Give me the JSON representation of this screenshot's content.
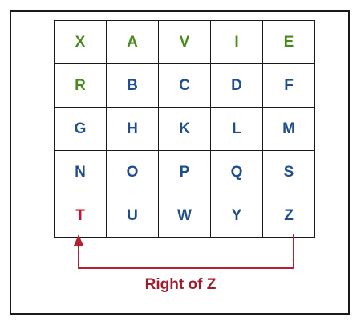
{
  "colors": {
    "green": "#4a8a1c",
    "blue": "#1f4e8c",
    "red": "#c8102e",
    "arrow": "#b22234",
    "caption": "#a01c2a"
  },
  "grid": {
    "rows": [
      [
        {
          "letter": "X",
          "color": "green"
        },
        {
          "letter": "A",
          "color": "green"
        },
        {
          "letter": "V",
          "color": "green"
        },
        {
          "letter": "I",
          "color": "green"
        },
        {
          "letter": "E",
          "color": "green"
        }
      ],
      [
        {
          "letter": "R",
          "color": "green"
        },
        {
          "letter": "B",
          "color": "blue"
        },
        {
          "letter": "C",
          "color": "blue"
        },
        {
          "letter": "D",
          "color": "blue"
        },
        {
          "letter": "F",
          "color": "blue"
        }
      ],
      [
        {
          "letter": "G",
          "color": "blue"
        },
        {
          "letter": "H",
          "color": "blue"
        },
        {
          "letter": "K",
          "color": "blue"
        },
        {
          "letter": "L",
          "color": "blue"
        },
        {
          "letter": "M",
          "color": "blue"
        }
      ],
      [
        {
          "letter": "N",
          "color": "blue"
        },
        {
          "letter": "O",
          "color": "blue"
        },
        {
          "letter": "P",
          "color": "blue"
        },
        {
          "letter": "Q",
          "color": "blue"
        },
        {
          "letter": "S",
          "color": "blue"
        }
      ],
      [
        {
          "letter": "T",
          "color": "red"
        },
        {
          "letter": "U",
          "color": "blue"
        },
        {
          "letter": "W",
          "color": "blue"
        },
        {
          "letter": "Y",
          "color": "blue"
        },
        {
          "letter": "Z",
          "color": "blue"
        }
      ]
    ]
  },
  "caption": "Right of Z"
}
